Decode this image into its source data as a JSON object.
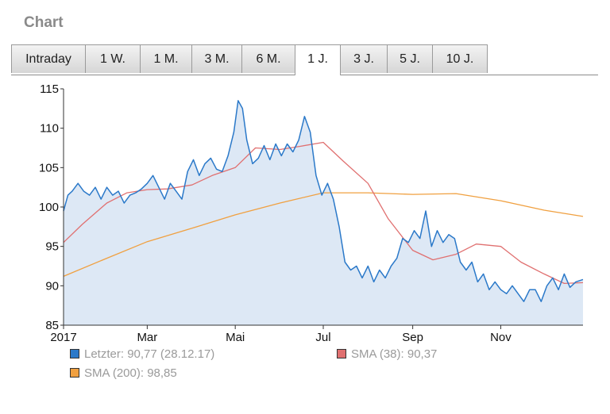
{
  "heading": "Chart",
  "tabs": [
    {
      "label": "Intraday"
    },
    {
      "label": "1 W."
    },
    {
      "label": "1 M."
    },
    {
      "label": "3 M."
    },
    {
      "label": "6 M."
    },
    {
      "label": "1 J.",
      "active": true
    },
    {
      "label": "3 J."
    },
    {
      "label": "5 J."
    },
    {
      "label": "10 J."
    }
  ],
  "legend": [
    {
      "text": "Letzter: 90,77 (28.12.17)",
      "color": "#2b79c9"
    },
    {
      "text": "SMA (38): 90,37",
      "color": "#e07070"
    },
    {
      "text": "SMA (200): 98,85",
      "color": "#f0a040"
    }
  ],
  "chart_data": {
    "type": "line",
    "xlim": [
      "2017-01-02",
      "2017-12-28"
    ],
    "ylim": [
      85,
      115
    ],
    "y_ticks": [
      85,
      90,
      95,
      100,
      105,
      110,
      115
    ],
    "x_ticks": [
      {
        "date": "2017-01-01",
        "label": "2017"
      },
      {
        "date": "2017-03-01",
        "label": "Mar"
      },
      {
        "date": "2017-05-01",
        "label": "Mai"
      },
      {
        "date": "2017-07-01",
        "label": "Jul"
      },
      {
        "date": "2017-09-01",
        "label": "Sep"
      },
      {
        "date": "2017-11-01",
        "label": "Nov"
      }
    ],
    "grid": false,
    "series": [
      {
        "name": "Letzter",
        "color": "#2b79c9",
        "fill": "#dde8f5",
        "x": [
          "2017-01-02",
          "2017-01-05",
          "2017-01-08",
          "2017-01-12",
          "2017-01-16",
          "2017-01-20",
          "2017-01-24",
          "2017-01-28",
          "2017-02-01",
          "2017-02-05",
          "2017-02-09",
          "2017-02-13",
          "2017-02-17",
          "2017-02-21",
          "2017-02-25",
          "2017-03-01",
          "2017-03-05",
          "2017-03-09",
          "2017-03-13",
          "2017-03-17",
          "2017-03-21",
          "2017-03-25",
          "2017-03-29",
          "2017-04-02",
          "2017-04-06",
          "2017-04-10",
          "2017-04-14",
          "2017-04-18",
          "2017-04-22",
          "2017-04-26",
          "2017-04-30",
          "2017-05-03",
          "2017-05-06",
          "2017-05-09",
          "2017-05-13",
          "2017-05-17",
          "2017-05-21",
          "2017-05-25",
          "2017-05-29",
          "2017-06-02",
          "2017-06-06",
          "2017-06-10",
          "2017-06-14",
          "2017-06-18",
          "2017-06-22",
          "2017-06-26",
          "2017-06-30",
          "2017-07-04",
          "2017-07-08",
          "2017-07-12",
          "2017-07-16",
          "2017-07-20",
          "2017-07-24",
          "2017-07-28",
          "2017-08-01",
          "2017-08-05",
          "2017-08-09",
          "2017-08-13",
          "2017-08-17",
          "2017-08-21",
          "2017-08-25",
          "2017-08-29",
          "2017-09-02",
          "2017-09-06",
          "2017-09-10",
          "2017-09-14",
          "2017-09-18",
          "2017-09-22",
          "2017-09-26",
          "2017-09-30",
          "2017-10-04",
          "2017-10-08",
          "2017-10-12",
          "2017-10-16",
          "2017-10-20",
          "2017-10-24",
          "2017-10-28",
          "2017-11-01",
          "2017-11-05",
          "2017-11-09",
          "2017-11-13",
          "2017-11-17",
          "2017-11-21",
          "2017-11-25",
          "2017-11-29",
          "2017-12-03",
          "2017-12-07",
          "2017-12-11",
          "2017-12-15",
          "2017-12-19",
          "2017-12-23",
          "2017-12-28"
        ],
        "values": [
          99.5,
          101.5,
          102.0,
          103.0,
          102.0,
          101.5,
          102.5,
          101.0,
          102.5,
          101.5,
          102.0,
          100.5,
          101.5,
          101.8,
          102.3,
          103.0,
          104.0,
          102.5,
          101.0,
          103.0,
          102.0,
          101.0,
          104.5,
          106.0,
          104.0,
          105.5,
          106.2,
          104.8,
          104.5,
          106.5,
          109.5,
          113.5,
          112.5,
          108.5,
          105.5,
          106.2,
          107.8,
          106.0,
          108.0,
          106.5,
          108.0,
          107.0,
          108.5,
          111.5,
          109.5,
          104.0,
          101.5,
          103.0,
          101.0,
          97.5,
          93.0,
          92.0,
          92.5,
          91.0,
          92.5,
          90.5,
          92.0,
          91.0,
          92.5,
          93.5,
          96.0,
          95.5,
          97.0,
          96.0,
          99.5,
          95.0,
          97.0,
          95.5,
          96.5,
          96.0,
          93.0,
          92.0,
          93.0,
          90.5,
          91.5,
          89.5,
          90.5,
          89.5,
          89.0,
          90.0,
          89.0,
          88.0,
          89.5,
          89.5,
          88.0,
          90.0,
          91.0,
          89.5,
          91.5,
          89.8,
          90.5,
          90.8
        ]
      },
      {
        "name": "SMA (38)",
        "color": "#e07070",
        "x": [
          "2017-01-02",
          "2017-01-15",
          "2017-02-01",
          "2017-02-15",
          "2017-03-01",
          "2017-03-15",
          "2017-04-01",
          "2017-04-15",
          "2017-05-01",
          "2017-05-15",
          "2017-06-01",
          "2017-06-15",
          "2017-07-01",
          "2017-07-15",
          "2017-08-01",
          "2017-08-15",
          "2017-09-01",
          "2017-09-15",
          "2017-10-01",
          "2017-10-15",
          "2017-11-01",
          "2017-11-15",
          "2017-12-01",
          "2017-12-15",
          "2017-12-28"
        ],
        "values": [
          95.5,
          97.8,
          100.5,
          101.8,
          102.2,
          102.3,
          102.8,
          104.0,
          105.0,
          107.5,
          107.3,
          107.7,
          108.2,
          105.8,
          103.0,
          98.5,
          94.5,
          93.3,
          94.0,
          95.3,
          95.0,
          93.0,
          91.5,
          90.3,
          90.4
        ]
      },
      {
        "name": "SMA (200)",
        "color": "#f0a040",
        "x": [
          "2017-01-02",
          "2017-02-01",
          "2017-03-01",
          "2017-04-01",
          "2017-05-01",
          "2017-06-01",
          "2017-07-01",
          "2017-08-01",
          "2017-09-01",
          "2017-10-01",
          "2017-11-01",
          "2017-12-01",
          "2017-12-28"
        ],
        "values": [
          91.2,
          93.5,
          95.6,
          97.3,
          99.0,
          100.5,
          101.8,
          101.8,
          101.6,
          101.7,
          100.8,
          99.6,
          98.8
        ]
      }
    ]
  }
}
